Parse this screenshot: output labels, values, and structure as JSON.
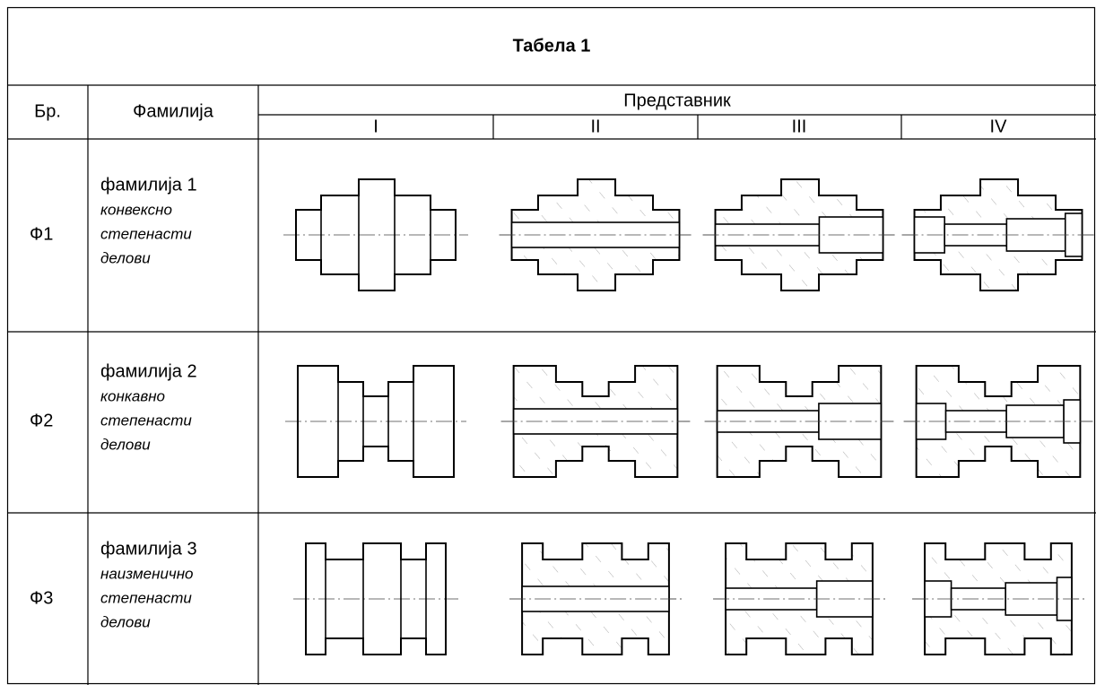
{
  "title": "Табела 1",
  "header": {
    "number": "Бр.",
    "family": "Фамилија",
    "representative": "Представник",
    "columns": [
      "I",
      "II",
      "III",
      "IV"
    ]
  },
  "rows": [
    {
      "number": "Ф1",
      "family": "фамилија 1",
      "description": [
        "конвексно",
        "степенасти",
        "делови"
      ]
    },
    {
      "number": "Ф2",
      "family": "фамилија 2",
      "description": [
        "конкавно",
        "степенасти",
        "делови"
      ]
    },
    {
      "number": "Ф3",
      "family": "фамилија 3",
      "description": [
        "наизменично",
        "степенасти",
        "делови"
      ]
    }
  ]
}
